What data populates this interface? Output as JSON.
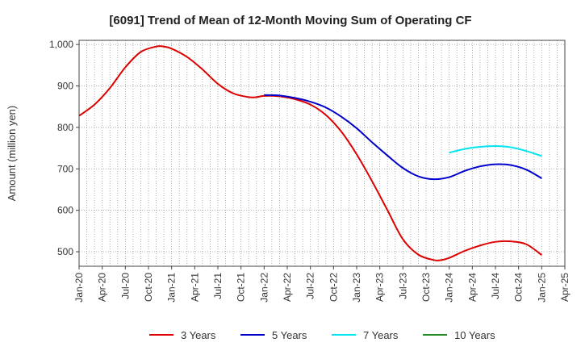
{
  "chart_data": {
    "type": "line",
    "title": "[6091]  Trend of Mean of 12-Month Moving Sum of Operating CF",
    "xlabel": "",
    "ylabel": "Amount (million yen)",
    "ylim": [
      465,
      1010
    ],
    "yticks": [
      500,
      600,
      700,
      800,
      900,
      1000
    ],
    "ytick_labels": [
      "500",
      "600",
      "700",
      "800",
      "900",
      "1,000"
    ],
    "xticks": [
      "Jan-20",
      "Apr-20",
      "Jul-20",
      "Oct-20",
      "Jan-21",
      "Apr-21",
      "Jul-21",
      "Oct-21",
      "Jan-22",
      "Apr-22",
      "Jul-22",
      "Oct-22",
      "Jan-23",
      "Apr-23",
      "Jul-23",
      "Oct-23",
      "Jan-24",
      "Apr-24",
      "Jul-24",
      "Oct-24",
      "Jan-25",
      "Apr-25"
    ],
    "x_unit": "months since Jan-2020",
    "grid": true,
    "legend_position": "bottom",
    "series": [
      {
        "name": "3 Years",
        "color": "#dd0000",
        "x": [
          0,
          2,
          4,
          6,
          8,
          10,
          11,
          12,
          14,
          16,
          18,
          20,
          22,
          23,
          24,
          26,
          28,
          30,
          32,
          34,
          36,
          38,
          40,
          42,
          44,
          46,
          47,
          48,
          50,
          52,
          54,
          56,
          58,
          60
        ],
        "values": [
          828,
          855,
          895,
          945,
          982,
          995,
          995,
          990,
          970,
          940,
          905,
          882,
          873,
          873,
          876,
          875,
          868,
          855,
          830,
          790,
          735,
          670,
          600,
          530,
          493,
          480,
          480,
          485,
          502,
          515,
          524,
          525,
          518,
          492
        ]
      },
      {
        "name": "5 Years",
        "color": "#0000cc",
        "x": [
          24,
          26,
          28,
          30,
          32,
          34,
          36,
          38,
          40,
          42,
          44,
          46,
          48,
          50,
          52,
          54,
          56,
          58,
          60
        ],
        "values": [
          878,
          877,
          871,
          862,
          848,
          826,
          798,
          764,
          732,
          702,
          682,
          675,
          680,
          695,
          706,
          711,
          709,
          698,
          677
        ]
      },
      {
        "name": "7 Years",
        "color": "#00e5ee",
        "x": [
          48,
          50,
          52,
          54,
          56,
          58,
          60
        ],
        "values": [
          739,
          748,
          753,
          755,
          752,
          743,
          731
        ]
      },
      {
        "name": "10 Years",
        "color": "#228b22",
        "x": [],
        "values": []
      }
    ]
  }
}
